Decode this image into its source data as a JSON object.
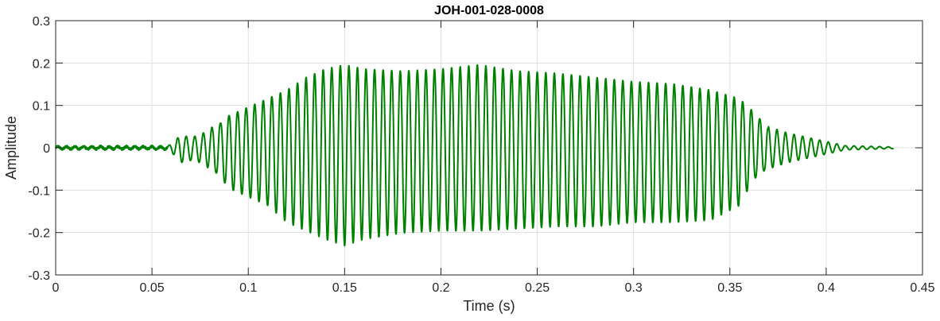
{
  "chart_data": {
    "type": "line",
    "title": "JOH-001-028-0008",
    "xlabel": "Time (s)",
    "ylabel": "Amplitude",
    "xlim": [
      0,
      0.45
    ],
    "ylim": [
      -0.3,
      0.3
    ],
    "xticks": [
      0,
      0.05,
      0.1,
      0.15,
      0.2,
      0.25,
      0.3,
      0.35,
      0.4,
      0.45
    ],
    "xtick_labels": [
      "0",
      "0.05",
      "0.1",
      "0.15",
      "0.2",
      "0.25",
      "0.3",
      "0.35",
      "0.4",
      "0.45"
    ],
    "yticks": [
      -0.3,
      -0.2,
      -0.1,
      0,
      0.1,
      0.2,
      0.3
    ],
    "ytick_labels": [
      "-0.3",
      "-0.2",
      "-0.1",
      "0",
      "0.1",
      "0.2",
      "0.3"
    ],
    "grid": true,
    "line_color": "#008000",
    "signal": {
      "duration": 0.435,
      "frequency_hz": 225,
      "envelope_time": [
        0,
        0.058,
        0.06,
        0.065,
        0.07,
        0.075,
        0.08,
        0.085,
        0.09,
        0.1,
        0.11,
        0.12,
        0.13,
        0.14,
        0.15,
        0.16,
        0.18,
        0.2,
        0.22,
        0.24,
        0.26,
        0.28,
        0.3,
        0.32,
        0.34,
        0.355,
        0.362,
        0.37,
        0.38,
        0.39,
        0.4,
        0.41,
        0.435
      ],
      "envelope_upper": [
        0.003,
        0.003,
        0.01,
        0.03,
        0.025,
        0.03,
        0.045,
        0.06,
        0.08,
        0.1,
        0.12,
        0.14,
        0.17,
        0.19,
        0.2,
        0.19,
        0.185,
        0.19,
        0.2,
        0.185,
        0.18,
        0.17,
        0.16,
        0.155,
        0.14,
        0.12,
        0.09,
        0.05,
        0.035,
        0.025,
        0.015,
        0.005,
        0.002
      ],
      "envelope_lower": [
        0.003,
        0.003,
        0.01,
        0.035,
        0.03,
        0.035,
        0.05,
        0.07,
        0.1,
        0.12,
        0.14,
        0.18,
        0.2,
        0.22,
        0.235,
        0.22,
        0.205,
        0.2,
        0.2,
        0.195,
        0.19,
        0.19,
        0.18,
        0.18,
        0.175,
        0.14,
        0.08,
        0.05,
        0.035,
        0.025,
        0.015,
        0.005,
        0.002
      ]
    }
  }
}
